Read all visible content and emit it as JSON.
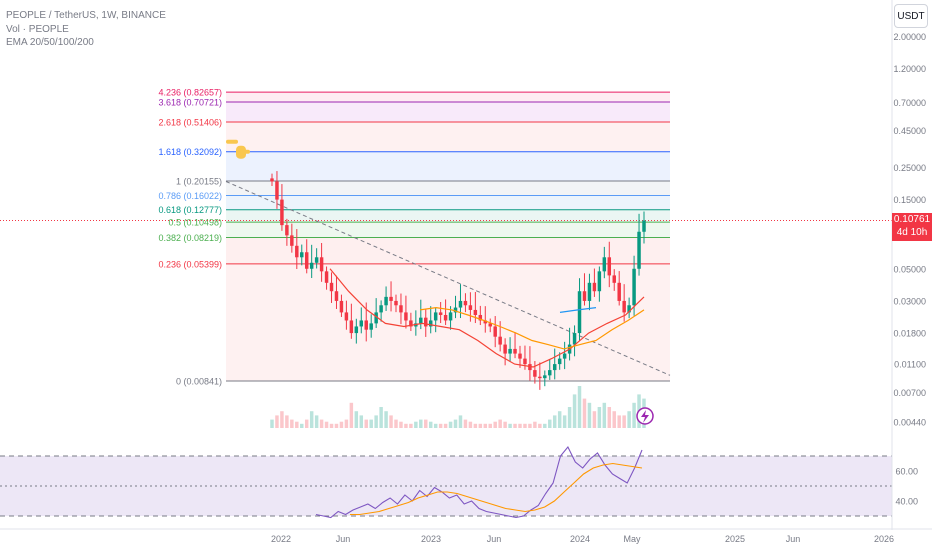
{
  "header": {
    "symbol_line": "PEOPLE / TetherUS, 1W, BINANCE",
    "vol_line": "Vol · PEOPLE",
    "ema_line": "EMA 20/50/100/200"
  },
  "currency_button": "USDT",
  "last_price": {
    "value": "0.10761",
    "countdown": "4d 10h"
  },
  "colors": {
    "accent_red": "#f23645",
    "ema_red": "#f44336",
    "ema_orange": "#ff9800",
    "ema_blue": "#2196f3",
    "rsi_purple": "#7e57c2",
    "rsi_band": "#ede7f6"
  },
  "chart_data": [
    {
      "type": "candlestick",
      "scale": "log",
      "ylim": [
        0.003,
        3.2
      ],
      "y_tick_labels": [
        "2.00000",
        "1.20000",
        "0.70000",
        "0.45000",
        "0.25000",
        "0.15000",
        "0.05000",
        "0.03000",
        "0.01800",
        "0.01100",
        "0.00700",
        "0.00440"
      ],
      "x_tick_labels": [
        "2022",
        "Jun",
        "2023",
        "Jun",
        "2024",
        "May",
        "2025",
        "Jun",
        "2026"
      ],
      "fib_levels": [
        {
          "label": "4.236 (0.82657)",
          "price": 0.82657,
          "color": "#e91e63"
        },
        {
          "label": "3.618 (0.70721)",
          "price": 0.70721,
          "color": "#9c27b0"
        },
        {
          "label": "2.618 (0.51406)",
          "price": 0.51406,
          "color": "#f23645"
        },
        {
          "label": "1.618 (0.32092)",
          "price": 0.32092,
          "color": "#2962ff"
        },
        {
          "label": "1 (0.20155)",
          "price": 0.20155,
          "color": "#787b86"
        },
        {
          "label": "0.786 (0.16022)",
          "price": 0.16022,
          "color": "#5b9cf6"
        },
        {
          "label": "0.618 (0.12777)",
          "price": 0.12777,
          "color": "#089981"
        },
        {
          "label": "0.5 (0.10498)",
          "price": 0.10498,
          "color": "#4caf50"
        },
        {
          "label": "0.382 (0.08219)",
          "price": 0.08219,
          "color": "#4caf50"
        },
        {
          "label": "0.236 (0.05399)",
          "price": 0.05399,
          "color": "#f23645"
        },
        {
          "label": "0 (0.00841)",
          "price": 0.00841,
          "color": "#787b86"
        }
      ],
      "close_series": [
        0.2,
        0.15,
        0.1,
        0.085,
        0.072,
        0.06,
        0.065,
        0.05,
        0.055,
        0.06,
        0.048,
        0.04,
        0.035,
        0.03,
        0.025,
        0.022,
        0.018,
        0.02,
        0.022,
        0.019,
        0.021,
        0.025,
        0.028,
        0.032,
        0.03,
        0.028,
        0.025,
        0.022,
        0.02,
        0.021,
        0.023,
        0.02,
        0.022,
        0.025,
        0.024,
        0.022,
        0.025,
        0.027,
        0.03,
        0.028,
        0.026,
        0.024,
        0.022,
        0.021,
        0.02,
        0.017,
        0.015,
        0.013,
        0.014,
        0.013,
        0.012,
        0.011,
        0.01,
        0.009,
        0.0088,
        0.0092,
        0.01,
        0.011,
        0.012,
        0.013,
        0.015,
        0.018,
        0.035,
        0.03,
        0.04,
        0.035,
        0.048,
        0.06,
        0.045,
        0.04,
        0.03,
        0.025,
        0.028,
        0.05,
        0.09,
        0.1076
      ],
      "ema_series": [
        {
          "name": "EMA 20",
          "color": "#f44336",
          "values": [
            0.05,
            0.035,
            0.026,
            0.021,
            0.02,
            0.021,
            0.02,
            0.019,
            0.016,
            0.013,
            0.011,
            0.0105,
            0.012,
            0.014,
            0.018,
            0.021,
            0.024,
            0.032
          ]
        },
        {
          "name": "EMA 50",
          "color": "#ff9800",
          "values": [
            0.026,
            0.027,
            0.026,
            0.024,
            0.022,
            0.02,
            0.018,
            0.016,
            0.015,
            0.014,
            0.015,
            0.016,
            0.019,
            0.022,
            0.026
          ]
        },
        {
          "name": "EMA 100",
          "color": "#2196f3",
          "values": [
            0.025,
            0.026,
            0.027
          ]
        }
      ],
      "trendline": {
        "from": 0.2,
        "to": 0.0092,
        "style": "dashed"
      },
      "volume_relative": [
        0.2,
        0.3,
        0.4,
        0.3,
        0.2,
        0.15,
        0.1,
        0.2,
        0.4,
        0.3,
        0.2,
        0.15,
        0.1,
        0.1,
        0.15,
        0.2,
        0.6,
        0.4,
        0.3,
        0.2,
        0.2,
        0.3,
        0.5,
        0.4,
        0.3,
        0.2,
        0.15,
        0.1,
        0.1,
        0.15,
        0.2,
        0.2,
        0.15,
        0.1,
        0.1,
        0.1,
        0.15,
        0.2,
        0.3,
        0.2,
        0.15,
        0.1,
        0.1,
        0.1,
        0.1,
        0.15,
        0.2,
        0.15,
        0.1,
        0.1,
        0.1,
        0.1,
        0.1,
        0.15,
        0.1,
        0.1,
        0.2,
        0.3,
        0.4,
        0.3,
        0.5,
        0.8,
        1.0,
        0.7,
        0.6,
        0.4,
        0.5,
        0.6,
        0.5,
        0.4,
        0.3,
        0.3,
        0.4,
        0.6,
        0.8,
        0.7
      ]
    },
    {
      "type": "line",
      "ylim": [
        28,
        82
      ],
      "y_tick_labels": [
        "60.00",
        "40.00"
      ],
      "bands": [
        70,
        50,
        30
      ],
      "series": [
        {
          "color": "#7e57c2",
          "values": [
            31,
            30,
            29,
            33,
            31,
            34,
            36,
            38,
            35,
            39,
            42,
            38,
            44,
            40,
            47,
            43,
            49,
            46,
            42,
            44,
            38,
            40,
            35,
            33,
            32,
            31,
            30,
            29,
            30,
            34,
            37,
            45,
            52,
            70,
            76,
            66,
            62,
            68,
            72,
            64,
            58,
            55,
            52,
            62,
            74
          ]
        },
        {
          "color": "#ff9800",
          "values": [
            31,
            31,
            32,
            33,
            35,
            37,
            39,
            42,
            44,
            46,
            46,
            45,
            43,
            41,
            39,
            37,
            35,
            34,
            33,
            34,
            36,
            40,
            46,
            52,
            58,
            62,
            64,
            65,
            64,
            63,
            62
          ]
        }
      ]
    }
  ]
}
